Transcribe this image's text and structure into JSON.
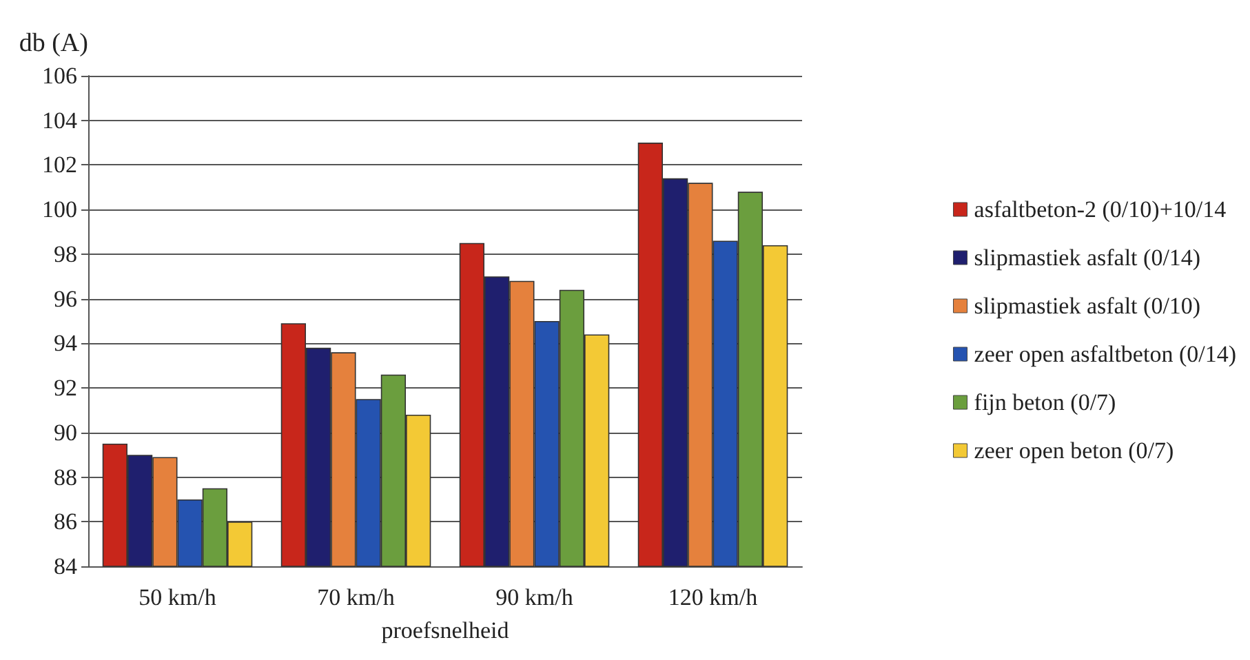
{
  "chart_data": {
    "type": "bar",
    "ylabel": "db (A)",
    "xlabel": "proefsnelheid",
    "categories": [
      "50 km/h",
      "70 km/h",
      "90 km/h",
      "120 km/h"
    ],
    "series": [
      {
        "name": "asfaltbeton-2 (0/10)+10/14",
        "color": "#c8261b",
        "values": [
          89.5,
          94.9,
          98.5,
          103.0
        ]
      },
      {
        "name": "slipmastiek asfalt (0/14)",
        "color": "#1f1f6e",
        "values": [
          89.0,
          93.8,
          97.0,
          101.4
        ]
      },
      {
        "name": "slipmastiek asfalt (0/10)",
        "color": "#e5813d",
        "values": [
          88.9,
          93.6,
          96.8,
          101.2
        ]
      },
      {
        "name": "zeer open asfaltbeton (0/14)",
        "color": "#2553b0",
        "values": [
          87.0,
          91.5,
          95.0,
          98.6
        ]
      },
      {
        "name": "fijn beton (0/7)",
        "color": "#6b9e3e",
        "values": [
          87.5,
          92.6,
          96.4,
          100.8
        ]
      },
      {
        "name": "zeer open beton (0/7)",
        "color": "#f3c935",
        "values": [
          86.0,
          90.8,
          94.4,
          98.4
        ]
      }
    ],
    "ylim": [
      84,
      106
    ],
    "yticks": [
      84,
      86,
      88,
      90,
      92,
      94,
      96,
      98,
      100,
      102,
      104,
      106
    ],
    "grid": "y",
    "legend": "right"
  }
}
